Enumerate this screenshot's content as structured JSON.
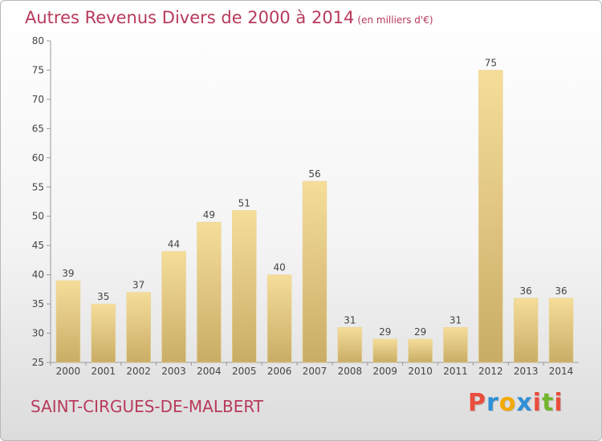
{
  "header": {
    "title": "Autres Revenus Divers de 2000 à 2014",
    "unit": "(en milliers d'€)"
  },
  "footer": {
    "commune": "SAINT-CIRGUES-DE-MALBERT",
    "logo_text": "Proxiti"
  },
  "colors": {
    "title": "#b83a5a",
    "bar_top": "#f5dd9a",
    "bar_bottom": "#c9ad66",
    "logo_letters": [
      "#e94e3d",
      "#2f8fd6",
      "#f2a900",
      "#2f8fd6",
      "#e94e3d",
      "#72b52c",
      "#e94e3d"
    ]
  },
  "chart_data": {
    "type": "bar",
    "title": "Autres Revenus Divers de 2000 à 2014",
    "subtitle": "(en milliers d'€)",
    "categories": [
      "2000",
      "2001",
      "2002",
      "2003",
      "2004",
      "2005",
      "2006",
      "2007",
      "2008",
      "2009",
      "2010",
      "2011",
      "2012",
      "2013",
      "2014"
    ],
    "values": [
      39,
      35,
      37,
      44,
      49,
      51,
      40,
      56,
      31,
      29,
      29,
      31,
      75,
      36,
      36
    ],
    "ylim": [
      25,
      80
    ],
    "yticks": [
      25,
      30,
      35,
      40,
      45,
      50,
      55,
      60,
      65,
      70,
      75,
      80
    ],
    "data_labels": true,
    "grid": false,
    "xlabel": "",
    "ylabel": ""
  }
}
